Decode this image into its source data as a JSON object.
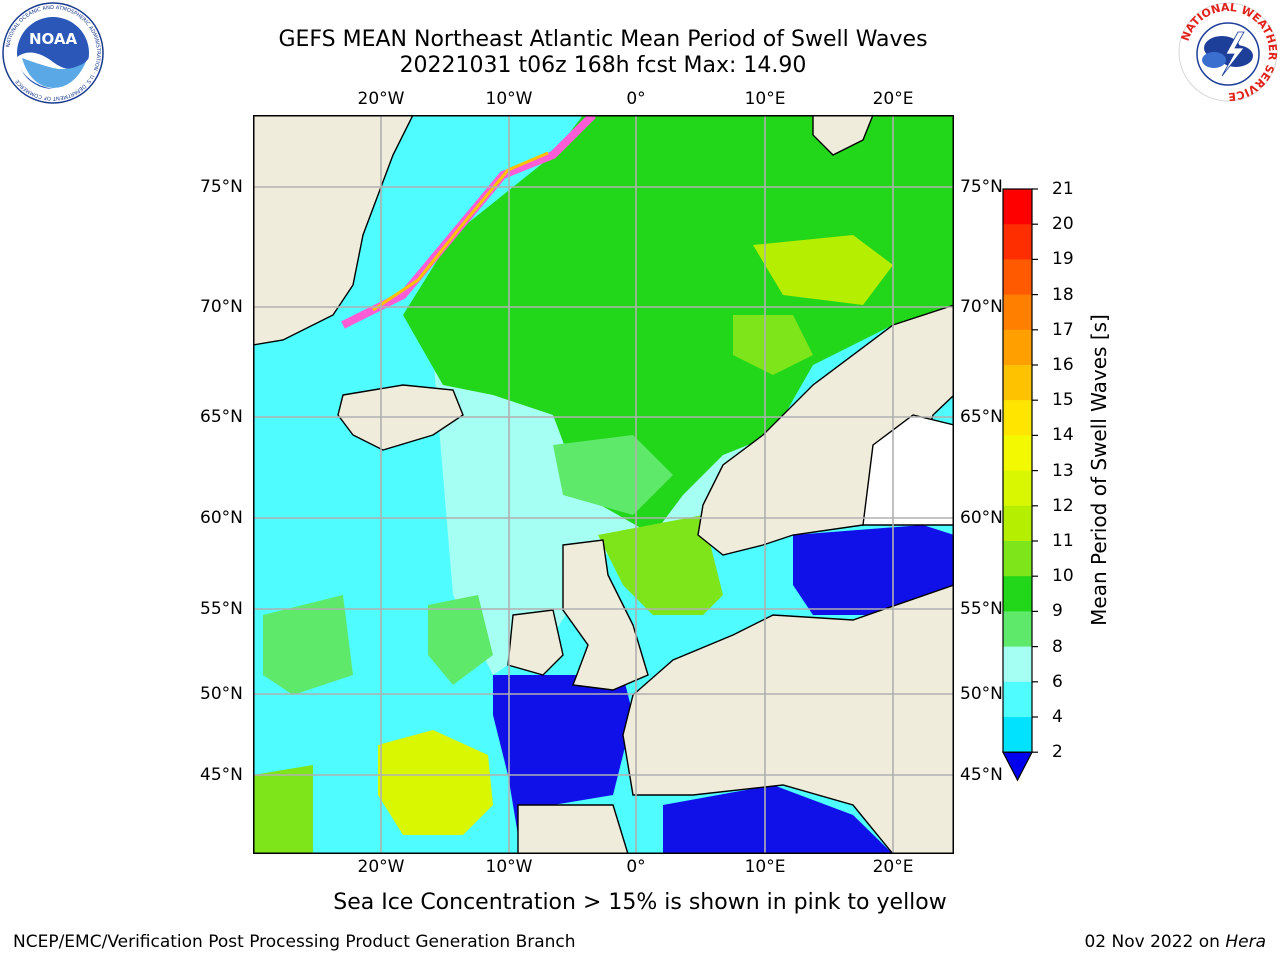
{
  "header": {
    "title_line1": "GEFS MEAN Northeast Atlantic Mean Period of Swell Waves",
    "title_line2": "20221031 t06z 168h fcst   Max: 14.90"
  },
  "logos": {
    "left": "NOAA",
    "left_ring_text": "NATIONAL OCEANIC AND ATMOSPHERIC ADMINISTRATION · U.S. DEPARTMENT OF COMMERCE",
    "right_ring_text": "NATIONAL WEATHER SERVICE"
  },
  "map": {
    "lon_labels": [
      "20°W",
      "10°W",
      "0°",
      "10°E",
      "20°E"
    ],
    "lat_labels": [
      "75°N",
      "70°N",
      "65°N",
      "60°N",
      "55°N",
      "50°N",
      "45°N"
    ],
    "extent": {
      "west": "30°W",
      "east": "24°E",
      "south": "41°N",
      "north": "78°N"
    },
    "max_value": 14.9
  },
  "colorbar": {
    "title": "Mean Period of Swell Waves [s]",
    "ticks": [
      "21",
      "20",
      "19",
      "18",
      "17",
      "16",
      "15",
      "14",
      "13",
      "12",
      "11",
      "10",
      "9",
      "8",
      "6",
      "4",
      "2"
    ],
    "colors": [
      "#ff0000",
      "#ff2e00",
      "#ff5a00",
      "#ff7f00",
      "#ffa000",
      "#ffc200",
      "#ffe500",
      "#f3f900",
      "#d8f700",
      "#b6ee00",
      "#7ee51a",
      "#22d61a",
      "#5fe96b",
      "#a6fff3",
      "#4ffcff",
      "#00e2ff",
      "#0077ff",
      "#0000ee"
    ],
    "extend": "min"
  },
  "colors": {
    "land": "#efecdc",
    "grid": "#b0b0b0",
    "ocean_low": "#1010e8",
    "sea_ice": "#ff5cd6"
  },
  "notes": {
    "ice": "Sea Ice Concentration > 15% is shown in pink to yellow"
  },
  "footer": {
    "left": "NCEP/EMC/Verification Post Processing Product Generation Branch",
    "date": "02 Nov 2022 on ",
    "host": "Hera"
  }
}
